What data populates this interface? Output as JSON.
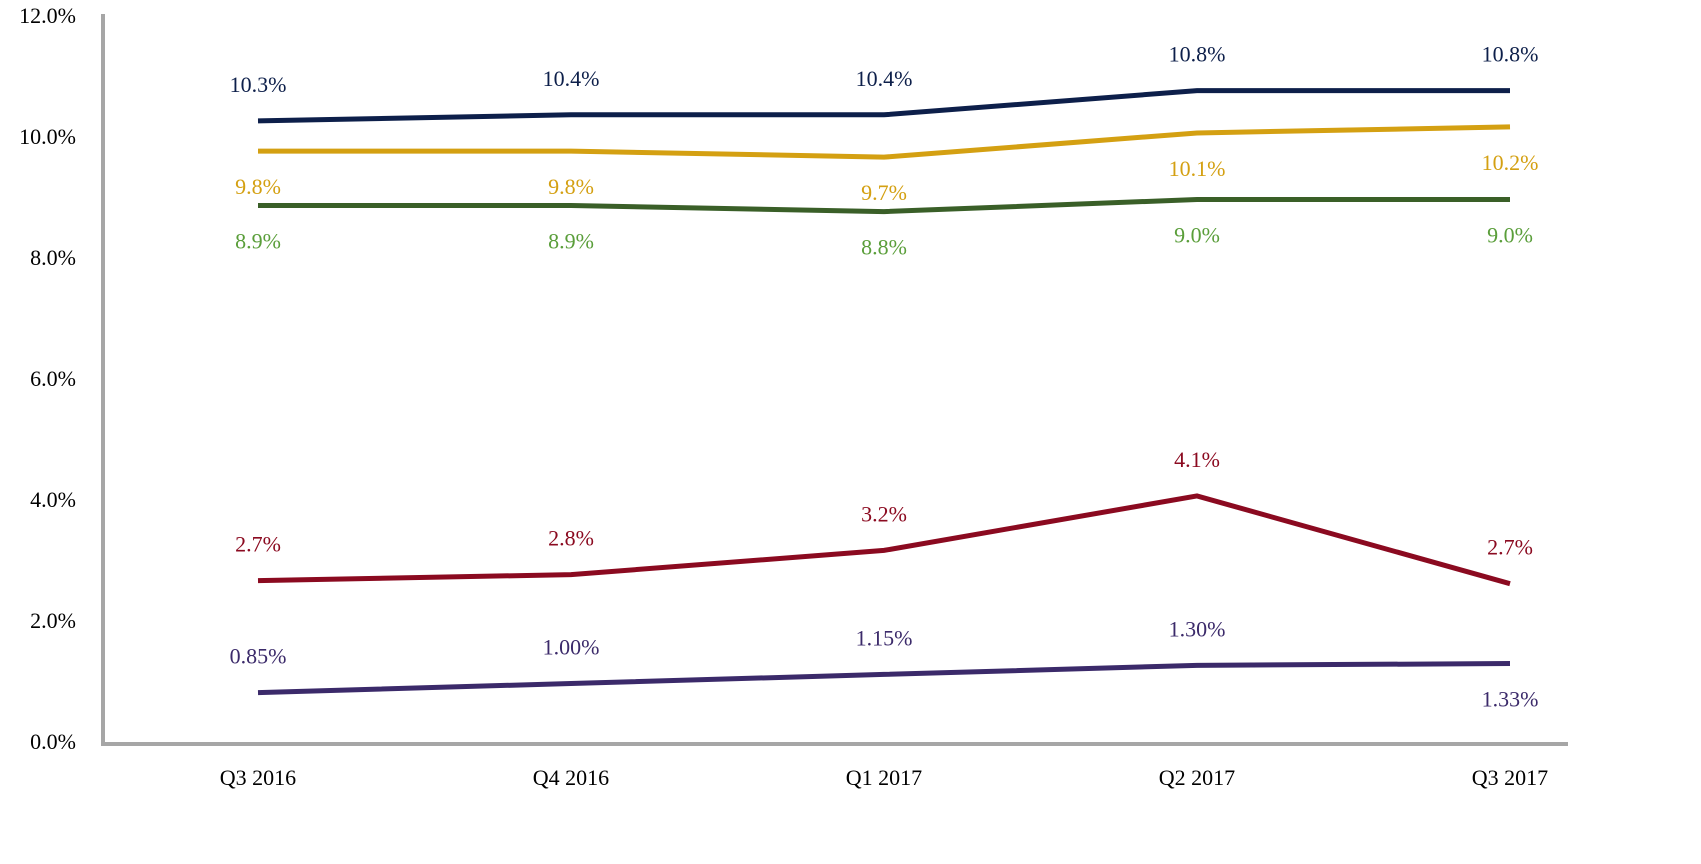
{
  "chart_data": {
    "type": "line",
    "categories": [
      "Q3 2016",
      "Q4 2016",
      "Q1 2017",
      "Q2 2017",
      "Q3 2017"
    ],
    "ylim": [
      0,
      12
    ],
    "yticks": [
      {
        "value": 0,
        "label": "0.0%"
      },
      {
        "value": 2,
        "label": "2.0%"
      },
      {
        "value": 4,
        "label": "4.0%"
      },
      {
        "value": 6,
        "label": "6.0%"
      },
      {
        "value": 8,
        "label": "8.0%"
      },
      {
        "value": 10,
        "label": "10.0%"
      },
      {
        "value": 12,
        "label": "12.0%"
      }
    ],
    "grid": false,
    "series": [
      {
        "color": "#0d1f4a",
        "label_color": "#0d1f4a",
        "values": [
          10.3,
          10.4,
          10.4,
          10.8,
          10.8
        ],
        "value_labels": [
          "10.3%",
          "10.4%",
          "10.4%",
          "10.8%",
          "10.8%"
        ]
      },
      {
        "color": "#d4a012",
        "label_color": "#d4a012",
        "values": [
          9.8,
          9.8,
          9.7,
          10.1,
          10.2
        ],
        "value_labels": [
          "9.8%",
          "9.8%",
          "9.7%",
          "10.1%",
          "10.2%"
        ]
      },
      {
        "color": "#3a5f28",
        "label_color": "#5a9e3a",
        "values": [
          8.9,
          8.9,
          8.8,
          9.0,
          9.0
        ],
        "value_labels": [
          "8.9%",
          "8.9%",
          "8.8%",
          "9.0%",
          "9.0%"
        ]
      },
      {
        "color": "#8b0a20",
        "label_color": "#8b0a20",
        "values": [
          2.7,
          2.8,
          3.2,
          4.1,
          2.65
        ],
        "value_labels": [
          "2.7%",
          "2.8%",
          "3.2%",
          "4.1%",
          "2.7%"
        ]
      },
      {
        "color": "#3b2a6a",
        "label_color": "#3b2a6a",
        "values": [
          0.85,
          1.0,
          1.15,
          1.3,
          1.33
        ],
        "value_labels": [
          "0.85%",
          "1.00%",
          "1.15%",
          "1.30%",
          "1.33%"
        ]
      }
    ]
  }
}
